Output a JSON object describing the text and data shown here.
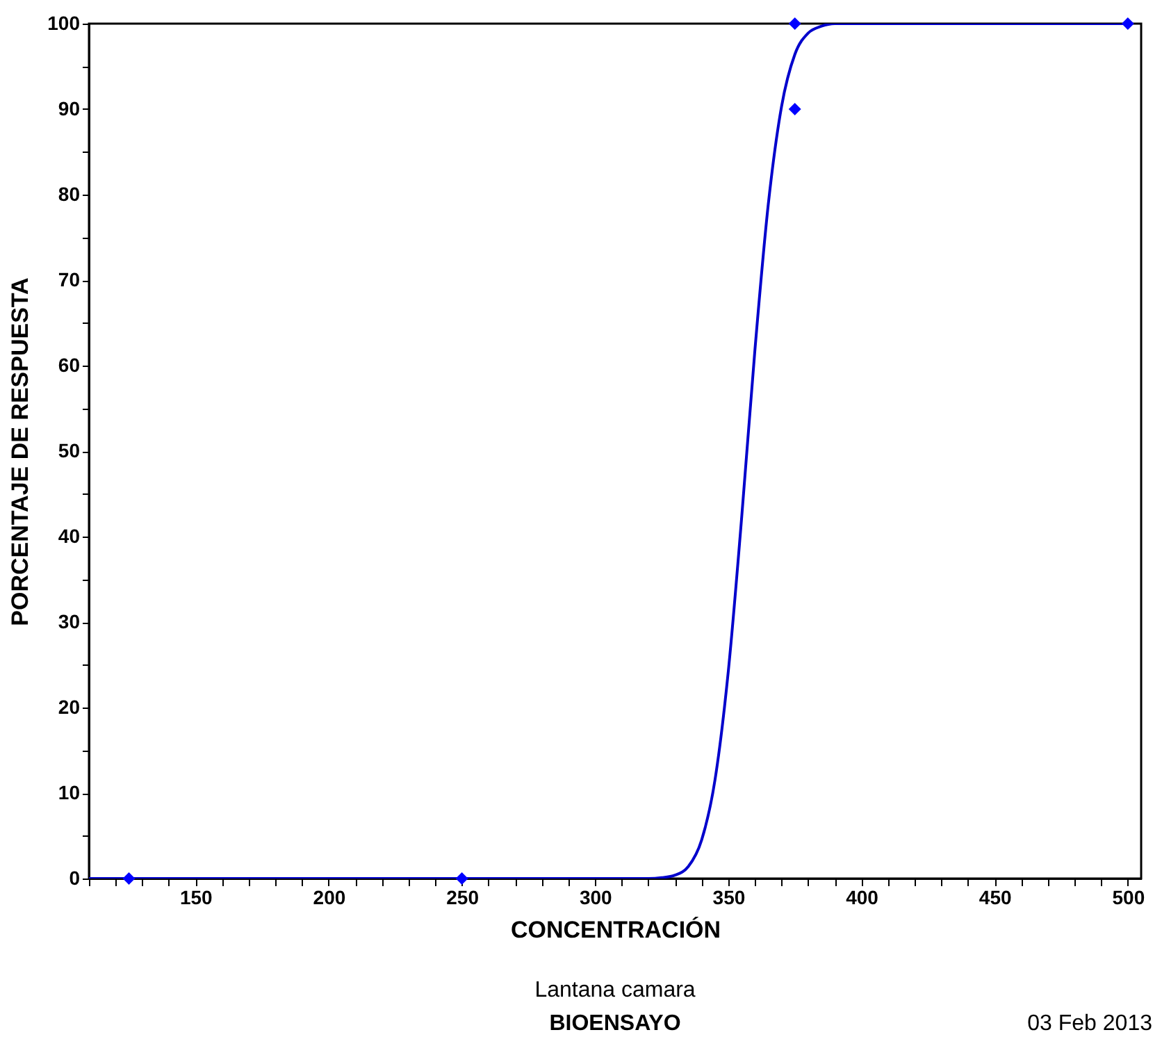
{
  "chart_data": {
    "type": "scatter",
    "xlabel": "CONCENTRACIÓN",
    "ylabel": "PORCENTAJE DE RESPUESTA",
    "annotations": [
      "Lantana camara",
      "BIOENSAYO",
      "03 Feb 2013"
    ],
    "xlim": [
      110,
      505
    ],
    "ylim": [
      0,
      100
    ],
    "xticks": [
      {
        "value": 110,
        "label": null
      },
      {
        "value": 120,
        "label": null
      },
      {
        "value": 130,
        "label": null
      },
      {
        "value": 140,
        "label": null
      },
      150,
      {
        "value": 160,
        "label": null
      },
      {
        "value": 170,
        "label": null
      },
      {
        "value": 180,
        "label": null
      },
      {
        "value": 190,
        "label": null
      },
      200,
      {
        "value": 210,
        "label": null
      },
      {
        "value": 220,
        "label": null
      },
      {
        "value": 230,
        "label": null
      },
      {
        "value": 240,
        "label": null
      },
      250,
      {
        "value": 260,
        "label": null
      },
      {
        "value": 270,
        "label": null
      },
      {
        "value": 280,
        "label": null
      },
      {
        "value": 290,
        "label": null
      },
      300,
      {
        "value": 310,
        "label": null
      },
      {
        "value": 320,
        "label": null
      },
      {
        "value": 330,
        "label": null
      },
      {
        "value": 340,
        "label": null
      },
      350,
      {
        "value": 360,
        "label": null
      },
      {
        "value": 370,
        "label": null
      },
      {
        "value": 380,
        "label": null
      },
      {
        "value": 390,
        "label": null
      },
      400,
      {
        "value": 410,
        "label": null
      },
      {
        "value": 420,
        "label": null
      },
      {
        "value": 430,
        "label": null
      },
      {
        "value": 440,
        "label": null
      },
      450,
      {
        "value": 460,
        "label": null
      },
      {
        "value": 470,
        "label": null
      },
      {
        "value": 480,
        "label": null
      },
      {
        "value": 490,
        "label": null
      },
      500
    ],
    "yticks": [
      0,
      {
        "value": 5,
        "label": null
      },
      10,
      {
        "value": 15,
        "label": null
      },
      20,
      {
        "value": 25,
        "label": null
      },
      30,
      {
        "value": 35,
        "label": null
      },
      40,
      {
        "value": 45,
        "label": null
      },
      50,
      {
        "value": 55,
        "label": null
      },
      60,
      {
        "value": 65,
        "label": null
      },
      70,
      {
        "value": 75,
        "label": null
      },
      80,
      {
        "value": 85,
        "label": null
      },
      90,
      {
        "value": 95,
        "label": null
      },
      100
    ],
    "grid": false,
    "series": [
      {
        "type": "line",
        "color": "#0000cc",
        "marker": "none",
        "line_style": "solid",
        "x": [
          110,
          300,
          310,
          320,
          325,
          330,
          335,
          340,
          345,
          350,
          355,
          360,
          365,
          370,
          375,
          380,
          385,
          390,
          400,
          500
        ],
        "values": [
          0,
          0,
          0,
          0,
          0.1,
          0.4,
          1.4,
          4.5,
          11.5,
          24.2,
          42.1,
          61.8,
          78.8,
          90.3,
          96.4,
          98.9,
          99.7,
          100,
          100,
          100
        ]
      },
      {
        "type": "scatter",
        "color": "#0000ff",
        "marker": "diamond",
        "x": [
          125,
          250,
          375,
          375,
          500
        ],
        "values": [
          0,
          0,
          100,
          90,
          100
        ]
      }
    ]
  }
}
